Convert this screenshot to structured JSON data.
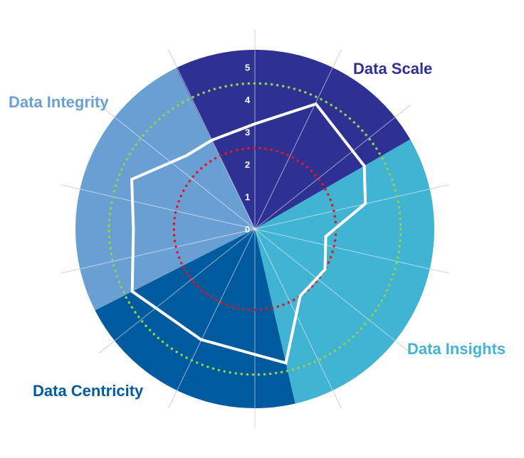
{
  "chart_data": {
    "type": "radar",
    "title": "",
    "r_ticks": [
      "0",
      "1",
      "2",
      "3",
      "4",
      "5"
    ],
    "rlim": [
      0,
      5
    ],
    "spokes": 14,
    "sectors": [
      {
        "name": "Data Scale",
        "color": "#2e3192",
        "from_deg": -26,
        "to_deg": 60
      },
      {
        "name": "Data Insights",
        "color": "#41b3d3",
        "from_deg": 60,
        "to_deg": 167
      },
      {
        "name": "Data Centricity",
        "color": "#005a9e",
        "from_deg": 167,
        "to_deg": 243
      },
      {
        "name": "Data Integrity",
        "color": "#6a9fd4",
        "from_deg": 243,
        "to_deg": 334
      }
    ],
    "series": [
      {
        "role": "score",
        "color": "#ffffff",
        "style": "solid",
        "points": [
          {
            "angle": 0,
            "value": 3.25
          },
          {
            "angle": 26,
            "value": 4.3
          },
          {
            "angle": 60,
            "value": 3.9
          },
          {
            "angle": 77,
            "value": 3.5
          },
          {
            "angle": 96,
            "value": 2.2
          },
          {
            "angle": 120,
            "value": 2.5
          },
          {
            "angle": 146,
            "value": 2.5
          },
          {
            "angle": 167,
            "value": 4.25
          },
          {
            "angle": 206,
            "value": 3.8
          },
          {
            "angle": 243,
            "value": 4.25
          },
          {
            "angle": 270,
            "value": 3.75
          },
          {
            "angle": 292,
            "value": 4.1
          },
          {
            "angle": 317,
            "value": 3.1
          },
          {
            "angle": 334,
            "value": 3.05
          }
        ]
      },
      {
        "role": "target",
        "color": "#92d050",
        "style": "dotted",
        "value": 4.5
      },
      {
        "role": "baseline",
        "color": "#e8141b",
        "style": "dotted",
        "value": 2.5
      }
    ]
  }
}
